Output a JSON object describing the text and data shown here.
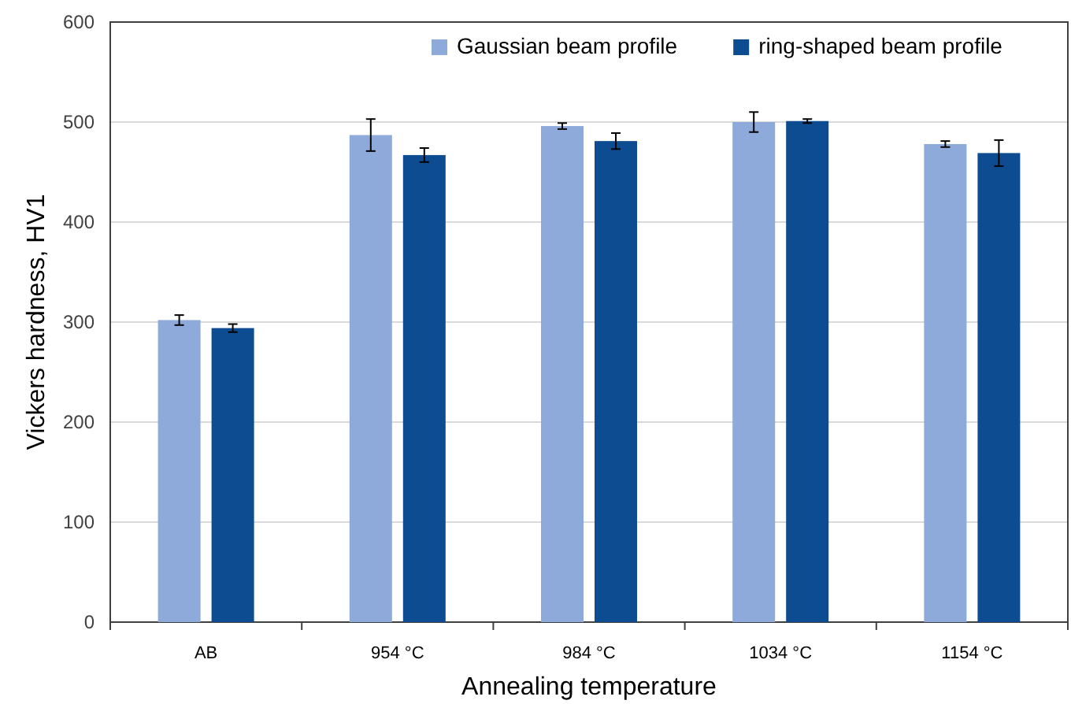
{
  "chart_data": {
    "type": "bar",
    "xlabel": "Annealing temperature",
    "ylabel": "Vickers hardness, HV1",
    "categories": [
      "AB",
      "954 °C",
      "984 °C",
      "1034 °C",
      "1154 °C"
    ],
    "ylim": [
      0,
      600
    ],
    "yticks": [
      0,
      100,
      200,
      300,
      400,
      500,
      600
    ],
    "grid": "y",
    "legend": "top right",
    "series": [
      {
        "name": "Gaussian beam profile",
        "color": "#8eaadb",
        "values": [
          302,
          487,
          496,
          500,
          478
        ],
        "errors": [
          5,
          16,
          3,
          10,
          3
        ]
      },
      {
        "name": "ring-shaped beam profile",
        "color": "#0e4c92",
        "values": [
          294,
          467,
          481,
          501,
          469
        ],
        "errors": [
          4,
          7,
          8,
          2,
          13
        ]
      }
    ]
  }
}
